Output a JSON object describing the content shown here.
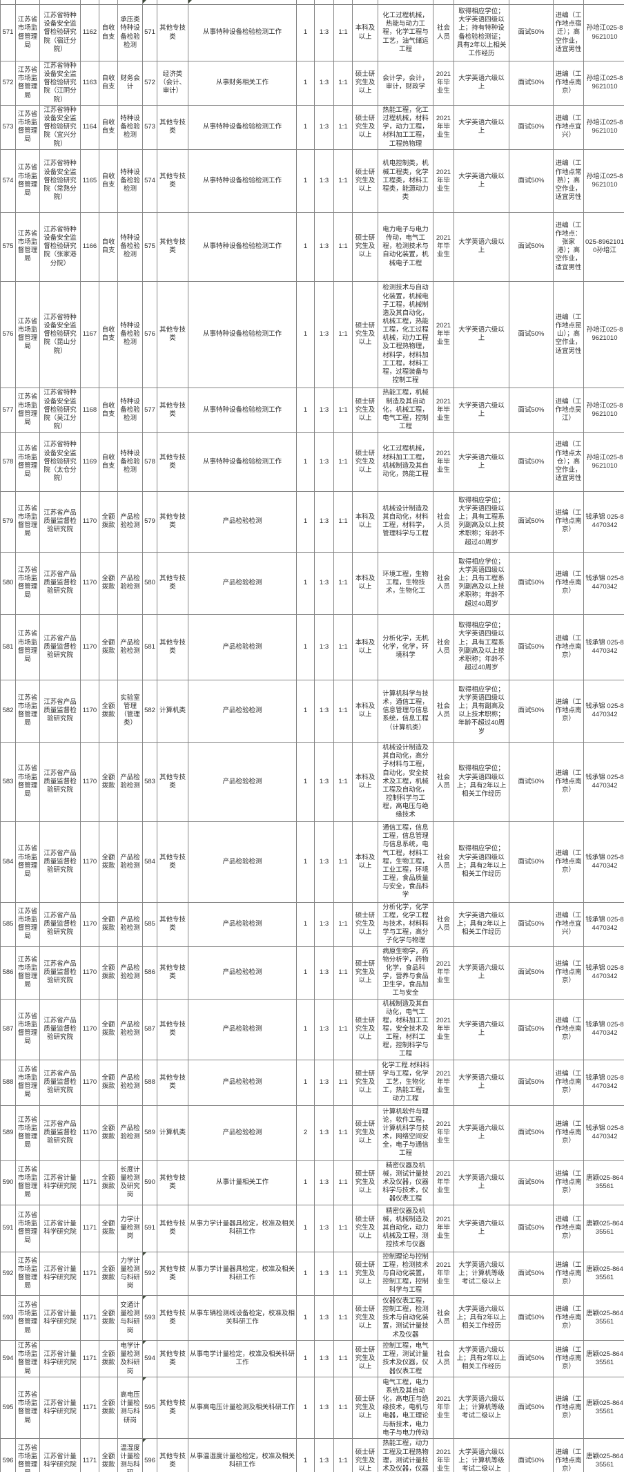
{
  "table": {
    "rows_with_code_marker": [
      "592",
      "593",
      "594",
      "595",
      "596"
    ],
    "rows": [
      [
        "571",
        "江苏省市场监督管理局",
        "江苏省特种设备安全监督检验研究院（宿迁分院）",
        "1162",
        "自收自支",
        "承压类特种设备检验检测",
        "571",
        "其他专技类",
        "从事特种设备检验检测工作",
        "1",
        "1:3",
        "1:1",
        "本科及以上",
        "化工过程机械，热能与动力工程，化学工程与工艺，油气储运工程",
        "社会人员",
        "取得相应学位；大学英语四级以上；持有特种设备检验检测证；具有2年以上相关工作经历",
        "面试50%",
        "进编（工作地点宿迁）；高空作业，适宜男性",
        "孙培江025-89621010"
      ],
      [
        "572",
        "江苏省市场监督管理局",
        "江苏省特种设备安全监督检验研究院（江阴分院）",
        "1163",
        "自收自支",
        "财务会计",
        "572",
        "经济类（会计、审计）",
        "从事财务相关工作",
        "1",
        "1:3",
        "1:1",
        "硕士研究生及以上",
        "会计学，会计，审计，财政学",
        "2021年毕业生",
        "大学英语六级以上",
        "面试50%",
        "进编（工作地点南京）",
        "孙培江025-89621010"
      ],
      [
        "573",
        "江苏省市场监督管理局",
        "江苏省特种设备安全监督检验研究院（宜兴分院）",
        "1164",
        "自收自支",
        "特种设备检验检测",
        "573",
        "其他专技类",
        "从事特种设备检验检测工作",
        "1",
        "1:3",
        "1:1",
        "硕士研究生及以上",
        "热能工程，化工过程机械，材料学，动力工程，材料加工工程，工程热物理",
        "2021年毕业生",
        "大学英语六级以上",
        "面试50%",
        "进编（工作地点宜兴）",
        "孙培江025-89621010"
      ],
      [
        "574",
        "江苏省市场监督管理局",
        "江苏省特种设备安全监督检验研究院（常熟分院）",
        "1165",
        "自收自支",
        "特种设备检验检测",
        "574",
        "其他专技类",
        "从事特种设备检验检测工作",
        "1",
        "1:3",
        "1:1",
        "硕士研究生及以上",
        "机电控制类，机械工程类，化学工程类，材料工程类，能源动力类",
        "2021年毕业生",
        "大学英语六级以上",
        "面试50%",
        "进编（工作地点常熟）；高空作业，适宜男性",
        "孙培江025-89621010"
      ],
      [
        "575",
        "江苏省市场监督管理局",
        "江苏省特种设备安全监督检验研究院（张家港分院）",
        "1166",
        "自收自支",
        "特种设备检验检测",
        "575",
        "其他专技类",
        "从事特种设备检验检测工作",
        "1",
        "1:3",
        "1:1",
        "硕士研究生及以上",
        "电力电子与电力传动，电气工程，检测技术与自动化装置，机械电子工程",
        "2021年毕业生",
        "大学英语六级以上",
        "面试50%",
        "进编（工作地点：张家港）；高空作业，适宜男性",
        "025-89621010孙培江"
      ],
      [
        "576",
        "江苏省市场监督管理局",
        "江苏省特种设备安全监督检验研究院（昆山分院）",
        "1167",
        "自收自支",
        "特种设备检验检测",
        "576",
        "其他专技类",
        "从事特种设备检验检测工作",
        "1",
        "1:3",
        "1:1",
        "硕士研究生及以上",
        "检测技术与自动化装置，机械电子工程，机械制造及其自动化，机械工程，热能工程，化工过程机械，动力工程及工程热物理，材料学，材料加工工程，材料工程，过程装备与控制工程",
        "2021年毕业生",
        "大学英语六级以上",
        "面试50%",
        "进编（工作地点昆山）；高空作业，适宜男性",
        "孙培江025-89621010"
      ],
      [
        "577",
        "江苏省市场监督管理局",
        "江苏省特种设备安全监督检验研究院（吴江分院）",
        "1168",
        "自收自支",
        "特种设备检验检测",
        "577",
        "其他专技类",
        "从事特种设备检验检测工作",
        "1",
        "1:3",
        "1:1",
        "硕士研究生及以上",
        "热能工程，机械制造及其自动化，机械工程，电气工程，控制工程",
        "2021年毕业生",
        "大学英语六级以上",
        "面试50%",
        "进编（工作地点吴江）",
        "孙培江025-89621010"
      ],
      [
        "578",
        "江苏省市场监督管理局",
        "江苏省特种设备安全监督检验研究院（太仓分院）",
        "1169",
        "自收自支",
        "特种设备检验检测",
        "578",
        "其他专技类",
        "从事特种设备检验检测工作",
        "1",
        "1:3",
        "1:1",
        "硕士研究生及以上",
        "化工过程机械，材料加工工程，机械制造及其自动化，热能工程",
        "2021年毕业生",
        "大学英语六级以上",
        "面试50%",
        "进编（工作地点太仓）；高空作业，适宜男性",
        "孙培江025-89621010"
      ],
      [
        "579",
        "江苏省市场监督管理局",
        "江苏省产品质量监督检验研究院",
        "1170",
        "全额拨款",
        "产品检验检测",
        "579",
        "其他专技类",
        "产品检验检测",
        "1",
        "1:3",
        "1:1",
        "本科及以上",
        "机械设计制造及其自动化，材料工程，材料学，管理科学与工程",
        "社会人员",
        "取得相应学位；大学英语四级以上；具有工程系列副高及以上技术职称；年龄不超过40周岁",
        "面试50%",
        "进编（工作地点南京）",
        "钱承锦 025-84470342"
      ],
      [
        "580",
        "江苏省市场监督管理局",
        "江苏省产品质量监督检验研究院",
        "1170",
        "全额拨款",
        "产品检验检测",
        "580",
        "其他专技类",
        "产品检验检测",
        "1",
        "1:3",
        "1:1",
        "本科及以上",
        "环境工程，生物工程，生物技术，生物化工",
        "社会人员",
        "取得相应学位；大学英语四级以上；具有工程系列副高及以上技术职称；年龄不超过40周岁",
        "面试50%",
        "进编（工作地点南京）",
        "钱承锦 025-84470342"
      ],
      [
        "581",
        "江苏省市场监督管理局",
        "江苏省产品质量监督检验研究院",
        "1170",
        "全额拨款",
        "产品检验检测",
        "581",
        "其他专技类",
        "产品检验检测",
        "1",
        "1:3",
        "1:1",
        "本科及以上",
        "分析化学，无机化学，化学，环境科学",
        "社会人员",
        "取得相应学位；大学英语四级以上；具有工程系列副高及以上技术职称；年龄不超过40周岁",
        "面试50%",
        "进编（工作地点南京）",
        "钱承锦 025-84470342"
      ],
      [
        "582",
        "江苏省市场监督管理局",
        "江苏省产品质量监督检验研究院",
        "1170",
        "全额拨款",
        "实验室管理（管理类）",
        "582",
        "计算机类",
        "产品检验检测",
        "1",
        "1:3",
        "1:1",
        "本科及以上",
        "计算机科学与技术，通信工程，信息管理与信息系统，信息工程（计算机类）",
        "社会人员",
        "取得相应学位；大学英语四级以上；具有副高及以上技术职称；年龄不超过40周岁",
        "面试50%",
        "进编（工作地点南京）",
        "钱承锦 025-84470342"
      ],
      [
        "583",
        "江苏省市场监督管理局",
        "江苏省产品质量监督检验研究院",
        "1170",
        "全额拨款",
        "产品检验检测",
        "583",
        "其他专技类",
        "产品检验检测",
        "1",
        "1:3",
        "1:1",
        "本科及以上",
        "机械设计制造及其自动化，高分子材料与工程，自动化，安全技术及工程，机械工程及自动化，控制科学与工程，高电压与绝缘技术",
        "社会人员",
        "取得相应学位；大学英语四级以上；具有2年以上相关工作经历",
        "面试50%",
        "进编（工作地点南京）",
        "钱承锦 025-84470342"
      ],
      [
        "584",
        "江苏省市场监督管理局",
        "江苏省产品质量监督检验研究院",
        "1170",
        "全额拨款",
        "产品检验检测",
        "584",
        "其他专技类",
        "产品检验检测",
        "1",
        "1:3",
        "1:1",
        "本科及以上",
        "通信工程，信息工程，信息管理与信息系统，电气工程，材料工程，生物工程，工业工程，环境工程，食品质量与安全，食品科学",
        "社会人员",
        "取得相应学位；大学英语四级以上；具有2年以上相关工作经历",
        "面试50%",
        "进编（工作地点南京）",
        "钱承锦 025-84470342"
      ],
      [
        "585",
        "江苏省市场监督管理局",
        "江苏省产品质量监督检验研究院",
        "1170",
        "全额拨款",
        "产品检验检测",
        "585",
        "其他专技类",
        "产品检验检测",
        "1",
        "1:3",
        "1:1",
        "硕士研究生及以上",
        "分析化学，化学工程，化学工程与技术，材料科学与工程，高分子化学与物理",
        "社会人员",
        "大学英语六级以上；具有2年以上相关工作经历",
        "面试50%",
        "进编（工作地点宜兴）",
        "钱承锦 025-84470342"
      ],
      [
        "586",
        "江苏省市场监督管理局",
        "江苏省产品质量监督检验研究院",
        "1170",
        "全额拨款",
        "产品检验检测",
        "586",
        "其他专技类",
        "产品检验检测",
        "1",
        "1:3",
        "1:1",
        "硕士研究生及以上",
        "病原生物学，药物分析学，药物化学，食品科学，营养与食品卫生学，食品加工与安全",
        "2021年毕业生",
        "大学英语六级以上",
        "面试50%",
        "进编（工作地点南京）",
        "钱承锦 025-84470342"
      ],
      [
        "587",
        "江苏省市场监督管理局",
        "江苏省产品质量监督检验研究院",
        "1170",
        "全额拨款",
        "产品检验检测",
        "587",
        "其他专技类",
        "产品检验检测",
        "1",
        "1:3",
        "1:1",
        "硕士研究生及以上",
        "机械制造及其自动化，电气工程，材料加工工程，安全技术及工程，材料工程，控制科学与工程",
        "2021年毕业生",
        "大学英语六级以上",
        "面试50%",
        "进编（工作地点南京）",
        "钱承锦 025-84470342"
      ],
      [
        "588",
        "江苏省市场监督管理局",
        "江苏省产品质量监督检验研究院",
        "1170",
        "全额拨款",
        "产品检验检测",
        "588",
        "其他专技类",
        "产品检验检测",
        "1",
        "1:3",
        "1:1",
        "硕士研究生及以上",
        "化学工程.材料科学与工程，化学工艺，生物化工，热能工程，动力工程",
        "2021年毕业生",
        "大学英语六级以上",
        "面试50%",
        "进编（工作地点南京）",
        "钱承锦 025-84470342"
      ],
      [
        "589",
        "江苏省市场监督管理局",
        "江苏省产品质量监督检验研究院",
        "1170",
        "全额拨款",
        "产品检验检测",
        "589",
        "计算机类",
        "产品检验检测",
        "2",
        "1:3",
        "1:1",
        "硕士研究生及以上",
        "计算机软件与理论，软件工程，计算机科学与技术，网络空间安全，电子与通信工程",
        "2021年毕业生",
        "大学英语六级以上",
        "面试50%",
        "进编（工作地点南京）",
        "钱承锦 025-84470342"
      ],
      [
        "590",
        "江苏省市场监督管理局",
        "江苏省计量科学研究院",
        "1171",
        "全额拨款",
        "长度计量检测及研究岗",
        "590",
        "其他专技类",
        "从事计量相关工作",
        "1",
        "1:3",
        "1:1",
        "硕士研究生及以上",
        "精密仪器及机械，测试计量技术及仪器，仪器科学与技术，仪器仪表工程",
        "2021年毕业生",
        "大学英语六级以上",
        "面试50%",
        "进编（工作地点南京）",
        "唐颖025-86435561"
      ],
      [
        "591",
        "江苏省市场监督管理局",
        "江苏省计量科学研究院",
        "1171",
        "全额拨款",
        "力学计量检测岗",
        "591",
        "其他专技类",
        "从事力学计量器具检定，校准及相关科研工作",
        "1",
        "1:3",
        "1:1",
        "硕士研究生及以上",
        "精密仪器及机械，机械制造及其自动化，动力机械及工程，测控技术与仪器",
        "2021年毕业生",
        "大学英语六级以上",
        "面试50%",
        "进编（工作地点南京）",
        "唐颖025-86435561"
      ],
      [
        "592",
        "江苏省市场监督管理局",
        "江苏省计量科学研究院",
        "1171",
        "全额拨款",
        "力学计量检测与科研岗",
        "592",
        "其他专技类",
        "从事力学计量器具检定，校准及相关科研工作",
        "1",
        "1:3",
        "1:1",
        "硕士研究生及以上",
        "控制理论与控制工程，检测技术与自动化装置，控制工程，控制科学与工程",
        "2021年毕业生",
        "大学英语六级以上；计算机等级考试二级以上",
        "面试50%",
        "进编（工作地点南京）",
        "唐颖025-86435561"
      ],
      [
        "593",
        "江苏省市场监督管理局",
        "江苏省计量科学研究院",
        "1171",
        "全额拨款",
        "交通计量检测与科研岗",
        "593",
        "其他专技类",
        "从事车辆检测线设备检定，校准及相关科研工作",
        "1",
        "1:3",
        "1:1",
        "硕士研究生及以上",
        "仪器仪表工程，控制工程，检测技术与自动化装置，测试计量技术及仪器",
        "社会人员",
        "大学英语六级以上；具有2年以上相关工作经历",
        "面试50%",
        "进编（工作地点南京）",
        "唐颖025-86435561"
      ],
      [
        "594",
        "江苏省市场监督管理局",
        "江苏省计量科学研究院",
        "1171",
        "全额拨款",
        "电学计量检测及科研岗",
        "594",
        "其他专技类",
        "从事电学计量检定，校准及相关科研工作",
        "1",
        "1:3",
        "1:1",
        "硕士研究生及以上",
        "控制工程，电气工程，测试计量技术及仪器，仪器仪表工程",
        "社会人员",
        "大学英语六级以上；具有2年以上相关工作经历",
        "面试50%",
        "进编（工作地点南京）",
        "唐颖025-86435561"
      ],
      [
        "595",
        "江苏省市场监督管理局",
        "江苏省计量科学研究院",
        "1171",
        "全额拨款",
        "高电压计量检测与科研岗",
        "595",
        "其他专技类",
        "从事高电压计量检测及相关科研工作",
        "1",
        "1:3",
        "1:1",
        "硕士研究生及以上",
        "电气工程，电力系统及其自动化，高电压与绝缘技术，电机与电器，电工理论与新技术，电力电子与电力传动",
        "2021年毕业生",
        "大学英语六级以上；计算机等级考试二级以上",
        "面试50%",
        "进编（工作地点南京）",
        "唐颖025-86435561"
      ],
      [
        "596",
        "江苏省市场监督管理局",
        "江苏省计量科学研究院",
        "1171",
        "全额拨款",
        "温湿度计量检测与科研",
        "596",
        "其他专技类",
        "从事温湿度计量检检定，校准及相关科研工作",
        "1",
        "1:3",
        "1:1",
        "硕士研究生及以上",
        "热能工程，动力工程及工程热物理，测试计量技术及仪器，仪器仪表工程",
        "2021年毕业生",
        "大学英语六级以上；计算机等级考试二级以上",
        "面试50%",
        "进编（工作地点南京）",
        "唐颖025-86435561"
      ]
    ]
  }
}
